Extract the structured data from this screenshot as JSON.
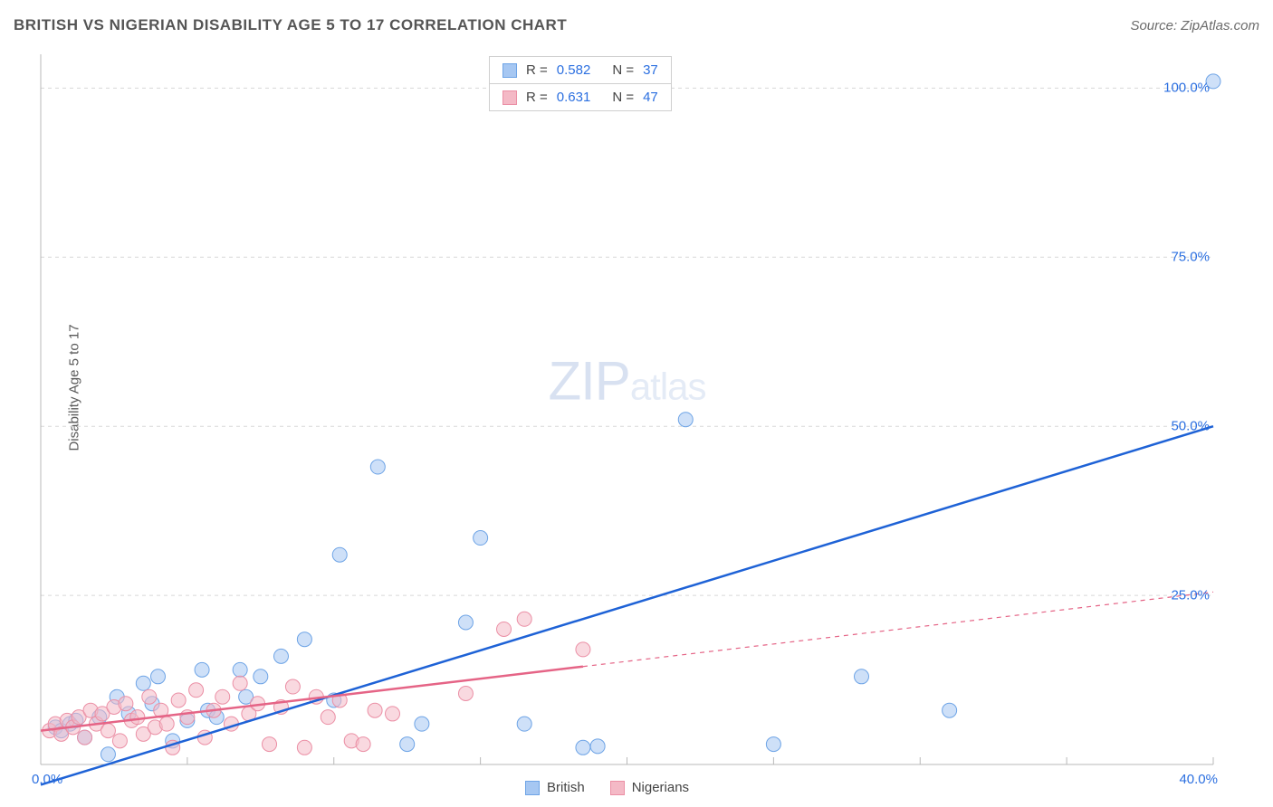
{
  "header": {
    "title": "BRITISH VS NIGERIAN DISABILITY AGE 5 TO 17 CORRELATION CHART",
    "source": "Source: ZipAtlas.com"
  },
  "ylabel": "Disability Age 5 to 17",
  "watermark": {
    "part1": "ZIP",
    "part2": "atlas"
  },
  "chart": {
    "type": "scatter",
    "xlim": [
      0,
      40
    ],
    "ylim": [
      0,
      105
    ],
    "x_tick_step": 5,
    "y_ticks": [
      25,
      50,
      75,
      100
    ],
    "y_tick_labels": [
      "25.0%",
      "50.0%",
      "75.0%",
      "100.0%"
    ],
    "x_origin_label": "0.0%",
    "x_end_label": "40.0%",
    "grid_color": "#d7d7d7",
    "axis_color": "#b8b8b8",
    "background_color": "#ffffff",
    "marker_radius": 8,
    "marker_opacity": 0.55,
    "line_width": 2.5,
    "series": [
      {
        "name": "British",
        "color_fill": "#a6c7f2",
        "color_stroke": "#6ea4e6",
        "line_color": "#1e62d6",
        "line": {
          "x1": 0,
          "y1": -3,
          "x2": 40,
          "y2": 50,
          "solid_until_x": 40
        },
        "points": [
          [
            0.5,
            5.5
          ],
          [
            0.7,
            5
          ],
          [
            1,
            6
          ],
          [
            1.2,
            6.5
          ],
          [
            1.5,
            4
          ],
          [
            2,
            7
          ],
          [
            2.3,
            1.5
          ],
          [
            2.6,
            10
          ],
          [
            3,
            7.5
          ],
          [
            3.5,
            12
          ],
          [
            3.8,
            9
          ],
          [
            4,
            13
          ],
          [
            4.5,
            3.5
          ],
          [
            5,
            6.5
          ],
          [
            5.5,
            14
          ],
          [
            5.7,
            8
          ],
          [
            6,
            7
          ],
          [
            6.8,
            14
          ],
          [
            7,
            10
          ],
          [
            7.5,
            13
          ],
          [
            8.2,
            16
          ],
          [
            9,
            18.5
          ],
          [
            10,
            9.5
          ],
          [
            10.2,
            31
          ],
          [
            11.5,
            44
          ],
          [
            12.5,
            3
          ],
          [
            13,
            6
          ],
          [
            14.5,
            21
          ],
          [
            15,
            33.5
          ],
          [
            16.5,
            6
          ],
          [
            18.5,
            2.5
          ],
          [
            19,
            2.7
          ],
          [
            22,
            51
          ],
          [
            25,
            3
          ],
          [
            28,
            13
          ],
          [
            31,
            8
          ],
          [
            40,
            101
          ]
        ]
      },
      {
        "name": "Nigerians",
        "color_fill": "#f4b9c6",
        "color_stroke": "#eb8fa5",
        "line_color": "#e56486",
        "line": {
          "x1": 0,
          "y1": 5,
          "x2": 40,
          "y2": 25.5,
          "solid_until_x": 18.5
        },
        "points": [
          [
            0.3,
            5
          ],
          [
            0.5,
            6
          ],
          [
            0.7,
            4.5
          ],
          [
            0.9,
            6.5
          ],
          [
            1.1,
            5.5
          ],
          [
            1.3,
            7
          ],
          [
            1.5,
            4
          ],
          [
            1.7,
            8
          ],
          [
            1.9,
            6
          ],
          [
            2.1,
            7.5
          ],
          [
            2.3,
            5
          ],
          [
            2.5,
            8.5
          ],
          [
            2.7,
            3.5
          ],
          [
            2.9,
            9
          ],
          [
            3.1,
            6.5
          ],
          [
            3.3,
            7
          ],
          [
            3.5,
            4.5
          ],
          [
            3.7,
            10
          ],
          [
            3.9,
            5.5
          ],
          [
            4.1,
            8
          ],
          [
            4.3,
            6
          ],
          [
            4.5,
            2.5
          ],
          [
            4.7,
            9.5
          ],
          [
            5,
            7
          ],
          [
            5.3,
            11
          ],
          [
            5.6,
            4
          ],
          [
            5.9,
            8
          ],
          [
            6.2,
            10
          ],
          [
            6.5,
            6
          ],
          [
            6.8,
            12
          ],
          [
            7.1,
            7.5
          ],
          [
            7.4,
            9
          ],
          [
            7.8,
            3
          ],
          [
            8.2,
            8.5
          ],
          [
            8.6,
            11.5
          ],
          [
            9,
            2.5
          ],
          [
            9.4,
            10
          ],
          [
            9.8,
            7
          ],
          [
            10.2,
            9.5
          ],
          [
            10.6,
            3.5
          ],
          [
            11,
            3
          ],
          [
            11.4,
            8
          ],
          [
            12,
            7.5
          ],
          [
            14.5,
            10.5
          ],
          [
            15.8,
            20
          ],
          [
            16.5,
            21.5
          ],
          [
            18.5,
            17
          ]
        ]
      }
    ]
  },
  "stat_box": {
    "rows": [
      {
        "swatch_fill": "#a6c7f2",
        "swatch_stroke": "#6ea4e6",
        "r_label": "R  =",
        "r_val": "0.582",
        "n_label": "N  =",
        "n_val": "37"
      },
      {
        "swatch_fill": "#f4b9c6",
        "swatch_stroke": "#eb8fa5",
        "r_label": "R  =",
        "r_val": "0.631",
        "n_label": "N  =",
        "n_val": "47"
      }
    ]
  },
  "bottom_legend": [
    {
      "swatch_fill": "#a6c7f2",
      "swatch_stroke": "#6ea4e6",
      "label": "British"
    },
    {
      "swatch_fill": "#f4b9c6",
      "swatch_stroke": "#eb8fa5",
      "label": "Nigerians"
    }
  ]
}
